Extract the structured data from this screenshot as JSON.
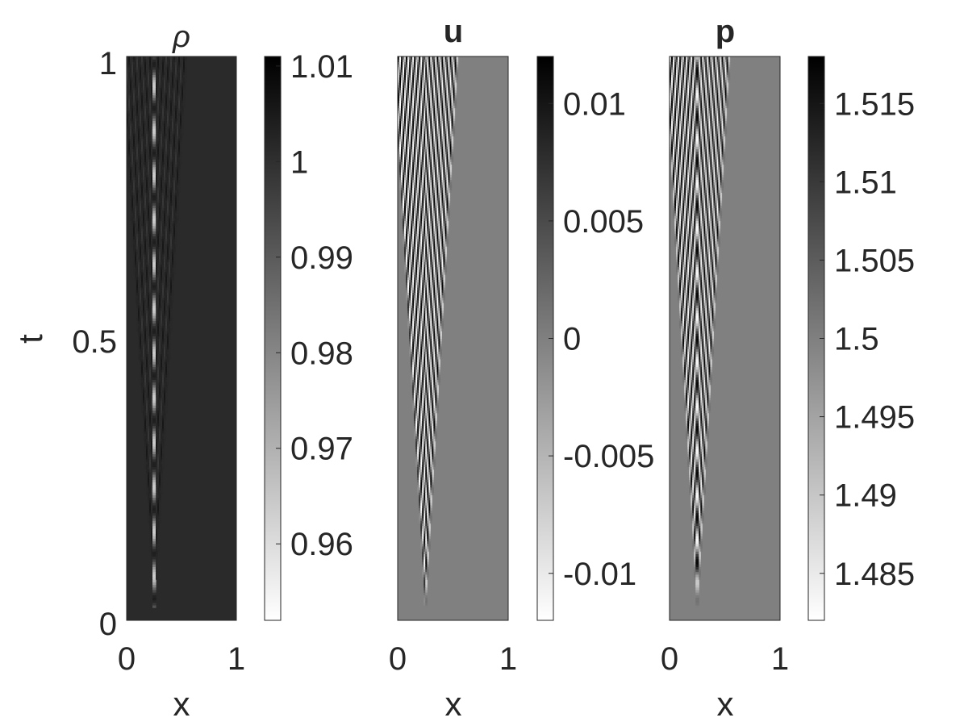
{
  "chart_data": [
    {
      "type": "heatmap",
      "title": "ρ",
      "xlabel": "x",
      "ylabel": "t",
      "xlim": [
        0,
        1
      ],
      "ylim": [
        0,
        1
      ],
      "xticks": [
        "0",
        "1"
      ],
      "yticks": [
        "0",
        "0.5",
        "1"
      ],
      "colormap": "gray",
      "colorbar": {
        "range": [
          0.952,
          1.011
        ],
        "ticks": [
          0.96,
          0.97,
          0.98,
          0.99,
          1,
          1.01
        ],
        "tick_labels": [
          "0.96",
          "0.97",
          "0.98",
          "0.99",
          "1",
          "1.01"
        ]
      },
      "background_level": 1.004,
      "pattern": {
        "source_x": 0.25,
        "wave_speed": 0.3,
        "stationary_line": true,
        "period_t": 0.079,
        "amplitude": 0.006
      }
    },
    {
      "type": "heatmap",
      "title": "u",
      "xlabel": "x",
      "ylabel": "",
      "xlim": [
        0,
        1
      ],
      "ylim": [
        0,
        1
      ],
      "xticks": [
        "0",
        "1"
      ],
      "yticks": [],
      "colormap": "gray",
      "colorbar": {
        "range": [
          -0.012,
          0.012
        ],
        "ticks": [
          -0.01,
          -0.005,
          0,
          0.005,
          0.01
        ],
        "tick_labels": [
          "-0.01",
          "-0.005",
          "0",
          "0.005",
          "0.01"
        ]
      },
      "background_level": 0,
      "pattern": {
        "source_x": 0.25,
        "wave_speed": 0.3,
        "stationary_line": false,
        "period_t": 0.079,
        "amplitude": 0.012
      }
    },
    {
      "type": "heatmap",
      "title": "p",
      "xlabel": "x",
      "ylabel": "",
      "xlim": [
        0,
        1
      ],
      "ylim": [
        0,
        1
      ],
      "xticks": [
        "0",
        "1"
      ],
      "yticks": [],
      "colormap": "gray",
      "colorbar": {
        "range": [
          1.482,
          1.518
        ],
        "ticks": [
          1.485,
          1.49,
          1.495,
          1.5,
          1.505,
          1.51,
          1.515
        ],
        "tick_labels": [
          "1.485",
          "1.49",
          "1.495",
          "1.5",
          "1.505",
          "1.51",
          "1.515"
        ]
      },
      "background_level": 1.5,
      "pattern": {
        "source_x": 0.25,
        "wave_speed": 0.3,
        "stationary_line": false,
        "period_t": 0.079,
        "amplitude": 0.017
      }
    }
  ]
}
